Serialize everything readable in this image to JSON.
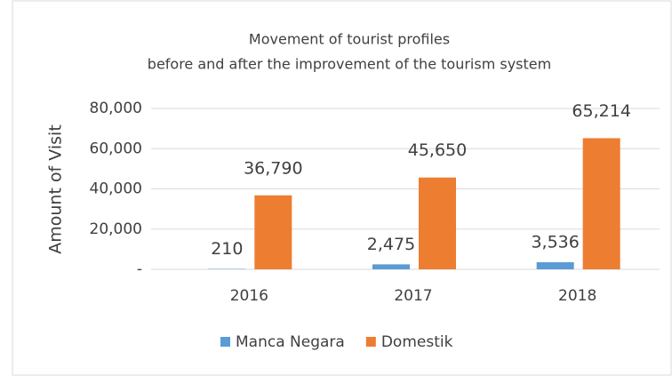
{
  "chart_data": {
    "type": "bar",
    "title": "Movement of tourist profiles",
    "subtitle": "before and after the improvement of the tourism system",
    "y_label": "Amount of Visit",
    "categories": [
      "2016",
      "2017",
      "2018"
    ],
    "series": [
      {
        "name": "Manca Negara",
        "color": "#5b9bd5",
        "values": [
          210,
          2475,
          3536
        ],
        "value_labels": [
          "210",
          "2,475",
          "3,536"
        ]
      },
      {
        "name": "Domestik",
        "color": "#ed7d31",
        "values": [
          36790,
          45650,
          65214
        ],
        "value_labels": [
          "36,790",
          "45,650",
          "65,214"
        ]
      }
    ],
    "ylim": [
      0,
      80000
    ],
    "yticks": [
      {
        "value": 0,
        "label": "-"
      },
      {
        "value": 20000,
        "label": "20,000"
      },
      {
        "value": 40000,
        "label": "40,000"
      },
      {
        "value": 60000,
        "label": "60,000"
      },
      {
        "value": 80000,
        "label": "80,000"
      }
    ],
    "grid": true,
    "legend": "bottom"
  }
}
